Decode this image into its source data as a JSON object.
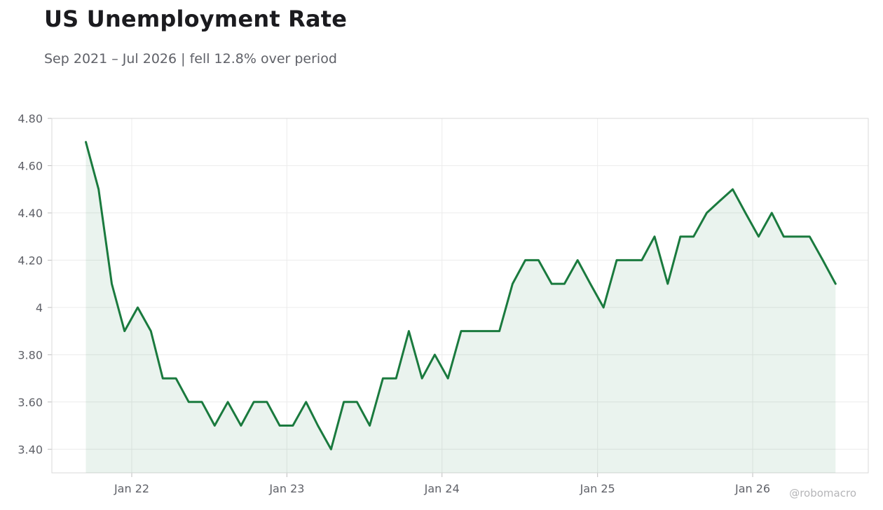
{
  "header": {
    "title": "US Unemployment Rate",
    "subtitle": "Sep 2021 – Jul 2026 | fell 12.8% over period"
  },
  "watermark": "@robomacro",
  "colors": {
    "line": "#1a7a3e",
    "fill": "#1a7a3e",
    "grid": "#ececec",
    "frame": "#d9d9d9",
    "text": "#5f6168"
  },
  "chart_data": {
    "type": "area",
    "title": "US Unemployment Rate",
    "subtitle": "Sep 2021 – Jul 2026 | fell 12.8% over period",
    "xlabel": "",
    "ylabel": "",
    "grid": true,
    "legend": "none",
    "x_range": [
      "2021-06-27",
      "2026-09-30"
    ],
    "ylim": [
      3.3,
      4.8
    ],
    "y_ticks": [
      3.4,
      3.6,
      3.8,
      4.0,
      4.2,
      4.4,
      4.6,
      4.8
    ],
    "y_tick_labels": [
      "3.40",
      "3.60",
      "3.80",
      "4",
      "4.20",
      "4.40",
      "4.60",
      "4.80"
    ],
    "x_ticks": [
      {
        "date": "2022-01-01",
        "label": "Jan 22"
      },
      {
        "date": "2023-01-01",
        "label": "Jan 23"
      },
      {
        "date": "2024-01-01",
        "label": "Jan 24"
      },
      {
        "date": "2025-01-01",
        "label": "Jan 25"
      },
      {
        "date": "2026-01-01",
        "label": "Jan 26"
      }
    ],
    "series": [
      {
        "x": [
          "2021-09",
          "2021-10",
          "2021-11",
          "2021-12",
          "2022-01",
          "2022-02",
          "2022-03",
          "2022-04",
          "2022-05",
          "2022-06",
          "2022-07",
          "2022-08",
          "2022-09",
          "2022-10",
          "2022-11",
          "2022-12",
          "2023-01",
          "2023-02",
          "2023-03",
          "2023-04",
          "2023-05",
          "2023-06",
          "2023-07",
          "2023-08",
          "2023-09",
          "2023-10",
          "2023-11",
          "2023-12",
          "2024-01",
          "2024-02",
          "2024-03",
          "2024-04",
          "2024-05",
          "2024-06",
          "2024-07",
          "2024-08",
          "2024-09",
          "2024-10",
          "2024-11",
          "2024-12",
          "2025-01",
          "2025-02",
          "2025-03",
          "2025-04",
          "2025-05",
          "2025-06",
          "2025-07",
          "2025-08",
          "2025-09",
          "2025-10",
          "2025-11",
          "2025-12",
          "2026-01",
          "2026-02",
          "2026-03",
          "2026-04",
          "2026-05",
          "2026-06",
          "2026-07"
        ],
        "values": [
          4.7,
          4.5,
          4.1,
          3.9,
          4.0,
          3.9,
          3.7,
          3.7,
          3.6,
          3.6,
          3.5,
          3.6,
          3.5,
          3.6,
          3.6,
          3.5,
          3.5,
          3.6,
          3.5,
          3.4,
          3.6,
          3.6,
          3.5,
          3.7,
          3.7,
          3.9,
          3.7,
          3.8,
          3.7,
          3.9,
          3.9,
          3.9,
          3.9,
          4.1,
          4.2,
          4.2,
          4.1,
          4.1,
          4.2,
          4.1,
          4.0,
          4.2,
          4.2,
          4.2,
          4.3,
          4.1,
          4.3,
          4.3,
          4.4,
          4.45,
          4.5,
          4.4,
          4.3,
          4.4,
          4.3,
          4.3,
          4.3,
          4.2,
          4.1
        ]
      }
    ]
  }
}
